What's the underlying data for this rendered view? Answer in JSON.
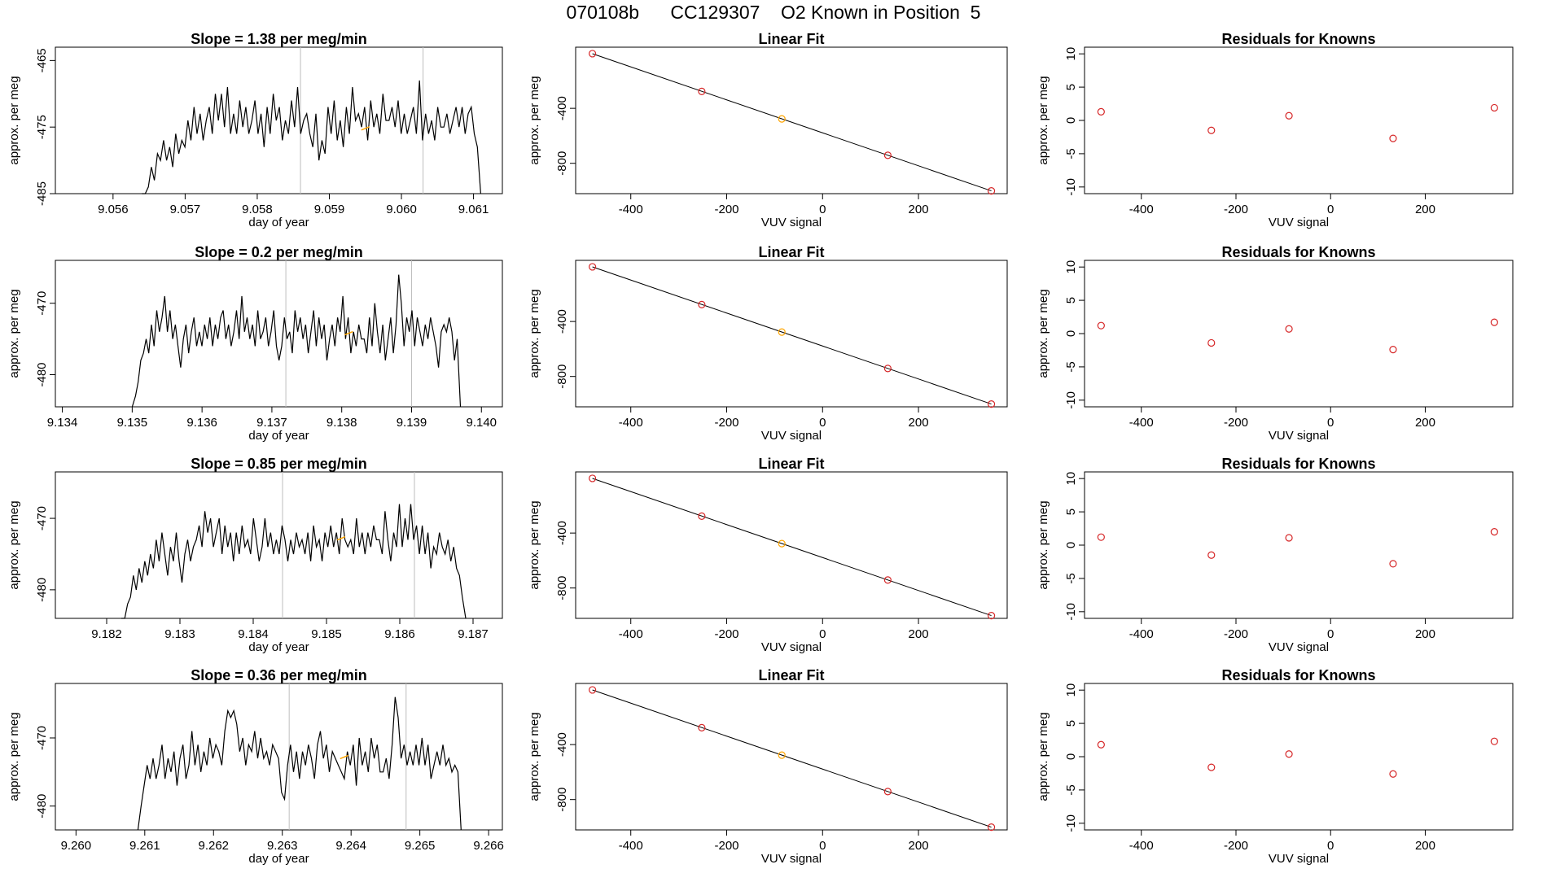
{
  "page": {
    "title": "070108b      CC129307    O2 Known in Position  5"
  },
  "style": {
    "line_color": "#000000",
    "frame_color": "#000000",
    "vline_color": "#bebebe",
    "point_color": "#d62728",
    "highlight_color": "#ffa500"
  },
  "chart_data": [
    {
      "type": "line",
      "panel": "time series",
      "row": 1,
      "title": "Slope =  1.38  per meg/min",
      "xlabel": "day of year",
      "ylabel": "approx. per meg",
      "xlim": [
        9.0552,
        9.0614
      ],
      "ylim": [
        -485,
        -463
      ],
      "xticks": [
        "9.056",
        "9.057",
        "9.058",
        "9.059",
        "9.060",
        "9.061"
      ],
      "yticks": [
        "-465",
        "-475",
        "-485"
      ],
      "vlines": [
        9.0586,
        9.0603
      ],
      "highlight_point": [
        9.0595,
        -475.2
      ],
      "series": [
        {
          "x_start": 9.0564,
          "x_end": 9.0611,
          "start_value": -485,
          "values": [
            -485,
            -484,
            -481,
            -483,
            -479,
            -480,
            -477,
            -480,
            -478,
            -481,
            -476,
            -479,
            -477,
            -478,
            -474,
            -477,
            -472,
            -476,
            -473,
            -477,
            -474,
            -472,
            -476,
            -470,
            -474,
            -470,
            -475,
            -469,
            -476,
            -473,
            -476,
            -471,
            -475,
            -472,
            -476,
            -474,
            -471,
            -476,
            -473,
            -478,
            -472,
            -476,
            -470,
            -474,
            -472,
            -477,
            -474,
            -476,
            -471,
            -475,
            -469,
            -476,
            -474,
            -473,
            -476,
            -478,
            -473,
            -480,
            -477,
            -479,
            -472,
            -476,
            -471,
            -477,
            -474,
            -478,
            -472,
            -476,
            -469,
            -474,
            -473,
            -475,
            -472,
            -477,
            -471,
            -475,
            -473,
            -476,
            -470,
            -474,
            -474,
            -472,
            -475,
            -471,
            -476,
            -473,
            -476,
            -474,
            -472,
            -476,
            -468,
            -477,
            -473,
            -476,
            -474,
            -477,
            -472,
            -475,
            -475,
            -473,
            -476,
            -474,
            -472,
            -475,
            -472,
            -476,
            -473,
            -472,
            -476,
            -478
          ],
          "end_value": -485
        }
      ]
    },
    {
      "type": "line",
      "panel": "time series",
      "row": 2,
      "title": "Slope =  0.2  per meg/min",
      "xlabel": "day of year",
      "ylabel": "approx. per meg",
      "xlim": [
        9.1339,
        9.1403
      ],
      "ylim": [
        -484.5,
        -464
      ],
      "xticks": [
        "9.134",
        "9.135",
        "9.136",
        "9.137",
        "9.138",
        "9.139",
        "9.140"
      ],
      "yticks": [
        "-470",
        "-480"
      ],
      "vlines": [
        9.1372,
        9.139
      ],
      "highlight_point": [
        9.1381,
        -474.2
      ],
      "series": [
        {
          "x_start": 9.135,
          "x_end": 9.1397,
          "start_value": -484.5,
          "values": [
            -483,
            -481,
            -478,
            -477,
            -475,
            -477,
            -473,
            -476,
            -471,
            -474,
            -472,
            -469,
            -474,
            -471,
            -475,
            -473,
            -476,
            -479,
            -475,
            -473,
            -477,
            -474,
            -472,
            -476,
            -474,
            -476,
            -473,
            -475,
            -472,
            -476,
            -473,
            -475,
            -472,
            -471,
            -475,
            -473,
            -476,
            -474,
            -471,
            -475,
            -469,
            -474,
            -472,
            -475,
            -473,
            -476,
            -471,
            -475,
            -474,
            -472,
            -476,
            -474,
            -471,
            -476,
            -478,
            -476,
            -472,
            -475,
            -474,
            -477,
            -471,
            -474,
            -472,
            -475,
            -473,
            -477,
            -474,
            -471,
            -476,
            -472,
            -475,
            -473,
            -478,
            -475,
            -473,
            -476,
            -472,
            -474,
            -469,
            -475,
            -472,
            -477,
            -474,
            -476,
            -473,
            -475,
            -475,
            -477,
            -472,
            -476,
            -470,
            -474,
            -477,
            -473,
            -478,
            -475,
            -472,
            -477,
            -473,
            -466,
            -470,
            -476,
            -472,
            -474,
            -471,
            -476,
            -472,
            -474,
            -476,
            -473,
            -475,
            -472,
            -474,
            -476,
            -479,
            -474,
            -473,
            -474,
            -472,
            -474,
            -478,
            -475
          ],
          "end_value": -484.5
        }
      ]
    },
    {
      "type": "line",
      "panel": "time series",
      "row": 3,
      "title": "Slope =  0.85  per meg/min",
      "xlabel": "day of year",
      "ylabel": "approx. per meg",
      "xlim": [
        9.1813,
        9.1874
      ],
      "ylim": [
        -484,
        -463.5
      ],
      "xticks": [
        "9.182",
        "9.183",
        "9.184",
        "9.185",
        "9.186",
        "9.187"
      ],
      "yticks": [
        "-470",
        "-480"
      ],
      "vlines": [
        9.1844,
        9.1862
      ],
      "highlight_point": [
        9.1852,
        -472.8
      ],
      "series": [
        {
          "x_start": 9.1822,
          "x_end": 9.1869,
          "start_value": -484,
          "values": [
            -484,
            -482,
            -481,
            -478,
            -480,
            -477,
            -479,
            -476,
            -478,
            -475,
            -477,
            -473,
            -476,
            -472,
            -475,
            -478,
            -474,
            -476,
            -472,
            -476,
            -479,
            -475,
            -473,
            -476,
            -474,
            -473,
            -471,
            -474,
            -469,
            -472,
            -470,
            -474,
            -472,
            -470,
            -475,
            -471,
            -474,
            -472,
            -476,
            -472,
            -475,
            -471,
            -474,
            -473,
            -475,
            -470,
            -473,
            -476,
            -474,
            -470,
            -474,
            -472,
            -475,
            -473,
            -475,
            -471,
            -473,
            -476,
            -473,
            -475,
            -472,
            -474,
            -473,
            -475,
            -472,
            -476,
            -471,
            -474,
            -473,
            -476,
            -472,
            -474,
            -471,
            -474,
            -472,
            -475,
            -470,
            -473,
            -474,
            -473,
            -475,
            -470,
            -474,
            -472,
            -475,
            -472,
            -474,
            -471,
            -473,
            -473,
            -475,
            -469,
            -473,
            -476,
            -472,
            -474,
            -468,
            -474,
            -470,
            -473,
            -468,
            -473,
            -471,
            -475,
            -471,
            -475,
            -472,
            -477,
            -474,
            -475,
            -472,
            -474,
            -475,
            -473,
            -476,
            -474,
            -477,
            -478,
            -481
          ],
          "end_value": -484
        }
      ]
    },
    {
      "type": "line",
      "panel": "time series",
      "row": 4,
      "title": "Slope =  0.36  per meg/min",
      "xlabel": "day of year",
      "ylabel": "approx. per meg",
      "xlim": [
        9.2597,
        9.2662
      ],
      "ylim": [
        -483.5,
        -462
      ],
      "xticks": [
        "9.260",
        "9.261",
        "9.262",
        "9.263",
        "9.264",
        "9.265",
        "9.266"
      ],
      "yticks": [
        "-470",
        "-480"
      ],
      "vlines": [
        9.2631,
        9.2648
      ],
      "highlight_point": [
        9.2639,
        -472.8
      ],
      "series": [
        {
          "x_start": 9.2609,
          "x_end": 9.2656,
          "start_value": -483.5,
          "values": [
            -480,
            -477,
            -474,
            -476,
            -473,
            -476,
            -474,
            -471,
            -476,
            -473,
            -475,
            -472,
            -477,
            -473,
            -471,
            -476,
            -474,
            -469,
            -474,
            -471,
            -475,
            -472,
            -474,
            -470,
            -473,
            -471,
            -472,
            -474,
            -469,
            -466,
            -467,
            -466,
            -468,
            -472,
            -470,
            -474,
            -471,
            -472,
            -469,
            -473,
            -470,
            -473,
            -472,
            -474,
            -471,
            -472,
            -473,
            -478,
            -479,
            -474,
            -471,
            -475,
            -472,
            -476,
            -472,
            -474,
            -471,
            -473,
            -476,
            -471,
            -469,
            -473,
            -471,
            -475,
            -472,
            -473,
            -474,
            -475,
            -476,
            -472,
            -474,
            -471,
            -477,
            -470,
            -474,
            -472,
            -475,
            -470,
            -473,
            -471,
            -475,
            -475,
            -473,
            -476,
            -471,
            -464,
            -467,
            -473,
            -471,
            -474,
            -472,
            -474,
            -471,
            -474,
            -470,
            -474,
            -471,
            -476,
            -474,
            -472,
            -474,
            -471,
            -474,
            -473,
            -475,
            -474,
            -475
          ],
          "end_value": -483.5
        }
      ]
    },
    {
      "type": "scatter",
      "panel": "linear fit",
      "row": 1,
      "title": "Linear Fit",
      "xlabel": "VUV signal",
      "ylabel": "approx. per meg",
      "xlim": [
        -515,
        385
      ],
      "ylim": [
        -1021,
        45
      ],
      "xticks": [
        "-400",
        "-200",
        "0",
        "200"
      ],
      "yticks": [
        "-400",
        "-800"
      ],
      "fit_line": {
        "slope": -1.2,
        "intercept": -578.4
      },
      "points": [
        [
          -480,
          -2
        ],
        [
          -252,
          -277
        ],
        [
          -85,
          -477
        ],
        [
          136,
          -742
        ],
        [
          352,
          -1001
        ]
      ],
      "highlight_index": 2
    },
    {
      "type": "scatter",
      "panel": "linear fit",
      "row": 2,
      "title": "Linear Fit",
      "xlabel": "VUV signal",
      "ylabel": "approx. per meg",
      "xlim": [
        -515,
        385
      ],
      "ylim": [
        -1021,
        45
      ],
      "xticks": [
        "-400",
        "-200",
        "0",
        "200"
      ],
      "yticks": [
        "-400",
        "-800"
      ],
      "fit_line": {
        "slope": -1.2,
        "intercept": -578.4
      },
      "points": [
        [
          -480,
          -2
        ],
        [
          -252,
          -277
        ],
        [
          -85,
          -477
        ],
        [
          136,
          -742
        ],
        [
          352,
          -1001
        ]
      ],
      "highlight_index": 2
    },
    {
      "type": "scatter",
      "panel": "linear fit",
      "row": 3,
      "title": "Linear Fit",
      "xlabel": "VUV signal",
      "ylabel": "approx. per meg",
      "xlim": [
        -515,
        385
      ],
      "ylim": [
        -1021,
        45
      ],
      "xticks": [
        "-400",
        "-200",
        "0",
        "200"
      ],
      "yticks": [
        "-400",
        "-800"
      ],
      "fit_line": {
        "slope": -1.2,
        "intercept": -578.4
      },
      "points": [
        [
          -480,
          -2
        ],
        [
          -252,
          -277
        ],
        [
          -85,
          -477
        ],
        [
          136,
          -742
        ],
        [
          352,
          -1001
        ]
      ],
      "highlight_index": 2
    },
    {
      "type": "scatter",
      "panel": "linear fit",
      "row": 4,
      "title": "Linear Fit",
      "xlabel": "VUV signal",
      "ylabel": "approx. per meg",
      "xlim": [
        -515,
        385
      ],
      "ylim": [
        -1021,
        45
      ],
      "xticks": [
        "-400",
        "-200",
        "0",
        "200"
      ],
      "yticks": [
        "-400",
        "-800"
      ],
      "fit_line": {
        "slope": -1.2,
        "intercept": -578.4
      },
      "points": [
        [
          -480,
          -2
        ],
        [
          -252,
          -277
        ],
        [
          -85,
          -477
        ],
        [
          136,
          -742
        ],
        [
          352,
          -1001
        ]
      ],
      "highlight_index": 2
    },
    {
      "type": "scatter",
      "panel": "residuals",
      "row": 1,
      "title": "Residuals for Knowns",
      "xlabel": "VUV signal",
      "ylabel": "approx. per meg",
      "xlim": [
        -520,
        385
      ],
      "ylim": [
        -11,
        11
      ],
      "xticks": [
        "-400",
        "-200",
        "0",
        "200"
      ],
      "yticks": [
        "10",
        "5",
        "0",
        "-5",
        "-10"
      ],
      "points": [
        [
          -485,
          1.3
        ],
        [
          -252,
          -1.5
        ],
        [
          -88,
          0.7
        ],
        [
          132,
          -2.7
        ],
        [
          346,
          1.9
        ]
      ]
    },
    {
      "type": "scatter",
      "panel": "residuals",
      "row": 2,
      "title": "Residuals for Knowns",
      "xlabel": "VUV signal",
      "ylabel": "approx. per meg",
      "xlim": [
        -520,
        385
      ],
      "ylim": [
        -11,
        11
      ],
      "xticks": [
        "-400",
        "-200",
        "0",
        "200"
      ],
      "yticks": [
        "10",
        "5",
        "0",
        "-5",
        "-10"
      ],
      "points": [
        [
          -485,
          1.2
        ],
        [
          -252,
          -1.4
        ],
        [
          -88,
          0.7
        ],
        [
          132,
          -2.4
        ],
        [
          346,
          1.7
        ]
      ]
    },
    {
      "type": "scatter",
      "panel": "residuals",
      "row": 3,
      "title": "Residuals for Knowns",
      "xlabel": "VUV signal",
      "ylabel": "approx. per meg",
      "xlim": [
        -520,
        385
      ],
      "ylim": [
        -11,
        11
      ],
      "xticks": [
        "-400",
        "-200",
        "0",
        "200"
      ],
      "yticks": [
        "10",
        "5",
        "0",
        "-5",
        "-10"
      ],
      "points": [
        [
          -485,
          1.2
        ],
        [
          -252,
          -1.5
        ],
        [
          -88,
          1.1
        ],
        [
          132,
          -2.8
        ],
        [
          346,
          2.0
        ]
      ]
    },
    {
      "type": "scatter",
      "panel": "residuals",
      "row": 4,
      "title": "Residuals for Knowns",
      "xlabel": "VUV signal",
      "ylabel": "approx. per meg",
      "xlim": [
        -520,
        385
      ],
      "ylim": [
        -11,
        11
      ],
      "xticks": [
        "-400",
        "-200",
        "0",
        "200"
      ],
      "yticks": [
        "10",
        "5",
        "0",
        "-5",
        "-10"
      ],
      "points": [
        [
          -485,
          1.8
        ],
        [
          -252,
          -1.6
        ],
        [
          -88,
          0.4
        ],
        [
          132,
          -2.6
        ],
        [
          346,
          2.3
        ]
      ]
    }
  ]
}
